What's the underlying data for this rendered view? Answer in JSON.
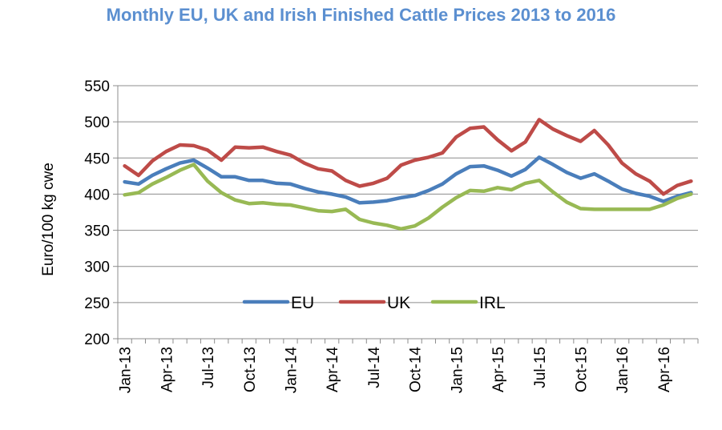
{
  "chart_data": {
    "type": "line",
    "title": "Monthly EU, UK and Irish Finished Cattle Prices 2013 to 2016",
    "ylabel": "Euro/100 kg cwe",
    "xlabel": "",
    "ylim": [
      200,
      550
    ],
    "yticks": [
      200,
      250,
      300,
      350,
      400,
      450,
      500,
      550
    ],
    "x": [
      "Jan-13",
      "Feb-13",
      "Mar-13",
      "Apr-13",
      "May-13",
      "Jun-13",
      "Jul-13",
      "Aug-13",
      "Sep-13",
      "Oct-13",
      "Nov-13",
      "Dec-13",
      "Jan-14",
      "Feb-14",
      "Mar-14",
      "Apr-14",
      "May-14",
      "Jun-14",
      "Jul-14",
      "Aug-14",
      "Sep-14",
      "Oct-14",
      "Nov-14",
      "Dec-14",
      "Jan-15",
      "Feb-15",
      "Mar-15",
      "Apr-15",
      "May-15",
      "Jun-15",
      "Jul-15",
      "Aug-15",
      "Sep-15",
      "Oct-15",
      "Nov-15",
      "Dec-15",
      "Jan-16",
      "Feb-16",
      "Mar-16",
      "Apr-16",
      "May-16",
      "Jun-16"
    ],
    "xtick_labels": [
      "Jan-13",
      "Apr-13",
      "Jul-13",
      "Oct-13",
      "Jan-14",
      "Apr-14",
      "Jul-14",
      "Oct-14",
      "Jan-15",
      "Apr-15",
      "Jul-15",
      "Oct-15",
      "Jan-16",
      "Apr-16"
    ],
    "grid": true,
    "legend": "center",
    "series": [
      {
        "name": "EU",
        "color": "#4a7ebb",
        "values": [
          417,
          414,
          426,
          435,
          443,
          447,
          436,
          424,
          424,
          419,
          419,
          415,
          414,
          408,
          403,
          400,
          396,
          388,
          389,
          391,
          395,
          398,
          405,
          414,
          428,
          438,
          439,
          433,
          425,
          434,
          451,
          441,
          430,
          422,
          428,
          418,
          407,
          401,
          397,
          390,
          397,
          402
        ]
      },
      {
        "name": "UK",
        "color": "#be4b48",
        "values": [
          439,
          426,
          446,
          459,
          468,
          467,
          461,
          447,
          465,
          464,
          465,
          459,
          454,
          443,
          435,
          432,
          419,
          411,
          415,
          422,
          440,
          447,
          451,
          457,
          479,
          491,
          493,
          475,
          460,
          472,
          503,
          490,
          481,
          473,
          488,
          468,
          443,
          428,
          418,
          400,
          412,
          418
        ]
      },
      {
        "name": "IRL",
        "color": "#98b954",
        "values": [
          399,
          402,
          414,
          423,
          433,
          441,
          418,
          402,
          392,
          387,
          388,
          386,
          385,
          381,
          377,
          376,
          379,
          365,
          360,
          357,
          352,
          356,
          367,
          382,
          395,
          405,
          404,
          409,
          406,
          415,
          419,
          403,
          389,
          380,
          379,
          379,
          379,
          379,
          379,
          385,
          394,
          400
        ]
      }
    ]
  }
}
